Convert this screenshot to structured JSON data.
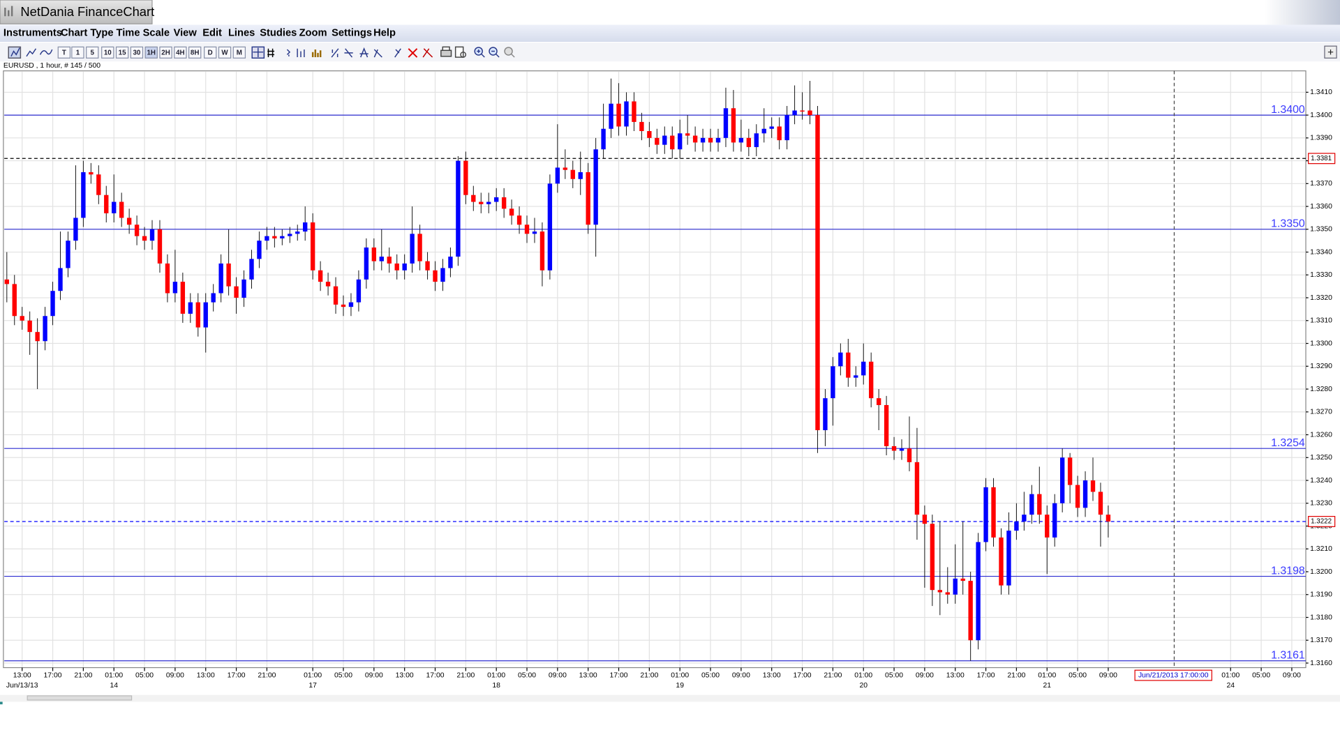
{
  "window_title": "NetDania FinanceChart",
  "menu": [
    "Instruments",
    "Chart Type",
    "Time Scale",
    "View",
    "Edit",
    "Lines",
    "Studies",
    "Zoom",
    "Settings",
    "Help"
  ],
  "toolbar": [
    "T",
    "1",
    "5",
    "10",
    "15",
    "30",
    "1H",
    "2H",
    "4H",
    "8H",
    "D",
    "W",
    "M"
  ],
  "chart_data": {
    "type": "candlestick",
    "title": "EURUSD , 1 hour, # 145 / 500",
    "cursor_label": "Jun/21/2013 17:00:00",
    "up_color": "#0000ff",
    "down_color": "#ff0000",
    "grid": true,
    "ylim": [
      1.3158,
      1.3419
    ],
    "yticks": [
      {
        "value": 1.316,
        "label": "1.3160"
      },
      {
        "value": 1.317,
        "label": "1.3170"
      },
      {
        "value": 1.318,
        "label": "1.3180"
      },
      {
        "value": 1.319,
        "label": "1.3190"
      },
      {
        "value": 1.32,
        "label": "1.3200"
      },
      {
        "value": 1.321,
        "label": "1.3210"
      },
      {
        "value": 1.322,
        "label": "1.3220"
      },
      {
        "value": 1.323,
        "label": "1.3230"
      },
      {
        "value": 1.324,
        "label": "1.3240"
      },
      {
        "value": 1.325,
        "label": "1.3250"
      },
      {
        "value": 1.326,
        "label": "1.3260"
      },
      {
        "value": 1.327,
        "label": "1.3270"
      },
      {
        "value": 1.328,
        "label": "1.3280"
      },
      {
        "value": 1.329,
        "label": "1.3290"
      },
      {
        "value": 1.33,
        "label": "1.3300"
      },
      {
        "value": 1.331,
        "label": "1.3310"
      },
      {
        "value": 1.332,
        "label": "1.3320"
      },
      {
        "value": 1.333,
        "label": "1.3330"
      },
      {
        "value": 1.334,
        "label": "1.3340"
      },
      {
        "value": 1.335,
        "label": "1.3350"
      },
      {
        "value": 1.336,
        "label": "1.3360"
      },
      {
        "value": 1.337,
        "label": "1.3370"
      },
      {
        "value": 1.338,
        "label": "1.3380"
      },
      {
        "value": 1.339,
        "label": "1.3390"
      },
      {
        "value": 1.34,
        "label": "1.3400"
      },
      {
        "value": 1.341,
        "label": "1.3410"
      }
    ],
    "levels": [
      {
        "value": 1.34,
        "label": "1.3400"
      },
      {
        "value": 1.335,
        "label": "1.3350"
      },
      1.3254,
      1.3198,
      1.3161
    ],
    "price_lines": [
      {
        "value": 1.3381,
        "color": "#000000"
      },
      {
        "value": 1.3222,
        "color": "#0000ff"
      }
    ],
    "categories": [
      null,
      null,
      "13:00",
      null,
      null,
      null,
      "17:00",
      null,
      null,
      null,
      "21:00",
      null,
      null,
      null,
      "01:00",
      null,
      null,
      null,
      "05:00",
      null,
      null,
      null,
      "09:00",
      null,
      null,
      null,
      "13:00",
      null,
      null,
      null,
      "17:00",
      null,
      null,
      null,
      "21:00",
      null,
      null,
      null,
      null,
      null,
      "01:00",
      null,
      null,
      null,
      "05:00",
      null,
      null,
      null,
      "09:00",
      null,
      null,
      null,
      "13:00",
      null,
      null,
      null,
      "17:00",
      null,
      null,
      null,
      "21:00",
      null,
      null,
      null,
      "01:00",
      null,
      null,
      null,
      "05:00",
      null,
      null,
      null,
      "09:00",
      null,
      null,
      null,
      "13:00",
      null,
      null,
      null,
      "17:00",
      null,
      null,
      null,
      "21:00",
      null,
      null,
      null,
      "01:00",
      null,
      null,
      null,
      "05:00",
      null,
      null,
      null,
      "09:00",
      null,
      null,
      null,
      "13:00",
      null,
      null,
      null,
      "17:00",
      null,
      null,
      null,
      "21:00",
      null,
      null,
      null,
      "01:00",
      null,
      null,
      null,
      "05:00",
      null,
      null,
      null,
      "09:00",
      null,
      null,
      null,
      "13:00",
      null,
      null,
      null,
      "17:00",
      null,
      null,
      null,
      "21:00",
      null,
      null,
      null,
      "01:00",
      null,
      null,
      null,
      "05:00",
      null,
      null,
      null,
      "09:00",
      null,
      null,
      null,
      null,
      null,
      null,
      null,
      null,
      null,
      null,
      null,
      null,
      null,
      null,
      null,
      "01:00",
      null,
      null,
      null,
      "05:00",
      null,
      null,
      null,
      "09:00",
      null
    ],
    "dates": [
      null,
      null,
      "Jun/13/13",
      null,
      null,
      null,
      null,
      null,
      null,
      null,
      null,
      null,
      null,
      null,
      "14",
      null,
      null,
      null,
      null,
      null,
      null,
      null,
      null,
      null,
      null,
      null,
      null,
      null,
      null,
      null,
      null,
      null,
      null,
      null,
      null,
      null,
      null,
      null,
      null,
      null,
      "17",
      null,
      null,
      null,
      null,
      null,
      null,
      null,
      null,
      null,
      null,
      null,
      null,
      null,
      null,
      null,
      null,
      null,
      null,
      null,
      null,
      null,
      null,
      null,
      "18",
      null,
      null,
      null,
      null,
      null,
      null,
      null,
      null,
      null,
      null,
      null,
      null,
      null,
      null,
      null,
      null,
      null,
      null,
      null,
      null,
      null,
      null,
      null,
      "19",
      null,
      null,
      null,
      null,
      null,
      null,
      null,
      null,
      null,
      null,
      null,
      null,
      null,
      null,
      null,
      null,
      null,
      null,
      null,
      null,
      null,
      null,
      null,
      "20",
      null,
      null,
      null,
      null,
      null,
      null,
      null,
      null,
      null,
      null,
      null,
      null,
      null,
      null,
      null,
      null,
      null,
      null,
      null,
      null,
      null,
      null,
      null,
      "21",
      null,
      null,
      null,
      null,
      null,
      null,
      null,
      null,
      null,
      null,
      null,
      null,
      null,
      null,
      null,
      null,
      null,
      null,
      null,
      null,
      null,
      null,
      null,
      "24",
      null,
      null,
      null,
      null,
      null,
      null,
      null,
      null,
      null
    ],
    "open": [
      1.3328,
      1.3326,
      1.3312,
      1.331,
      1.3305,
      1.3301,
      1.3312,
      1.3323,
      1.3333,
      1.3345,
      1.3355,
      1.3375,
      1.3374,
      1.3365,
      1.3357,
      1.3362,
      1.3355,
      1.3352,
      1.3347,
      1.3345,
      1.335,
      1.3335,
      1.3322,
      1.3327,
      1.3313,
      1.3318,
      1.3307,
      1.3318,
      1.3322,
      1.3335,
      1.3325,
      1.332,
      1.3328,
      1.3337,
      1.3345,
      1.3347,
      1.3346,
      1.3347,
      1.3348,
      1.3349,
      1.3353,
      1.3332,
      1.3327,
      1.3325,
      1.3317,
      1.3316,
      1.3318,
      1.3328,
      1.3342,
      1.3336,
      1.3338,
      1.3335,
      1.3332,
      1.3335,
      1.3348,
      1.3336,
      1.3332,
      1.3327,
      1.3333,
      1.3338,
      1.338,
      1.3365,
      1.3362,
      1.3361,
      1.3362,
      1.3364,
      1.3359,
      1.3356,
      1.3352,
      1.3348,
      1.3349,
      1.3332,
      1.337,
      1.3377,
      1.3376,
      1.3372,
      1.3375,
      1.3352,
      1.3385,
      1.3394,
      1.3405,
      1.3395,
      1.3406,
      1.3397,
      1.3393,
      1.339,
      1.3387,
      1.3391,
      1.3385,
      1.3392,
      1.3391,
      1.3388,
      1.339,
      1.3388,
      1.339,
      1.3403,
      1.3388,
      1.339,
      1.3386,
      1.3392,
      1.3394,
      1.3395,
      1.3389,
      1.34,
      1.3402,
      1.3402,
      1.34,
      1.3262,
      1.3276,
      1.329,
      1.3296,
      1.3285,
      1.3286,
      1.3292,
      1.3276,
      1.3273,
      1.3255,
      1.3253,
      1.3254,
      1.3248,
      1.3225,
      1.3221,
      1.3192,
      1.3191,
      1.319,
      1.3197,
      1.3196,
      1.317,
      1.3213,
      1.3237,
      1.3215,
      1.3194,
      1.3218,
      1.3222,
      1.3225,
      1.3234,
      1.3225,
      1.3215,
      1.323,
      1.325,
      1.3238,
      1.3228,
      1.324,
      1.3235,
      1.3225,
      null,
      null,
      null,
      null,
      null,
      null,
      null,
      null,
      null,
      null,
      null,
      null,
      null,
      null,
      null,
      null,
      null,
      null,
      null,
      null,
      null,
      null,
      null,
      null,
      null
    ],
    "high": [
      1.334,
      1.333,
      1.3316,
      1.3314,
      1.3311,
      1.3316,
      1.3327,
      1.3349,
      1.3349,
      1.3378,
      1.338,
      1.3379,
      1.3378,
      1.3369,
      1.3374,
      1.3366,
      1.3359,
      1.3356,
      1.3351,
      1.3354,
      1.3354,
      1.3339,
      1.3341,
      1.3331,
      1.3322,
      1.3322,
      1.3322,
      1.3326,
      1.3339,
      1.335,
      1.3329,
      1.3332,
      1.3341,
      1.3349,
      1.3351,
      1.3351,
      1.335,
      1.3351,
      1.3352,
      1.336,
      1.3357,
      1.3336,
      1.3331,
      1.3329,
      1.3321,
      1.3322,
      1.3332,
      1.3346,
      1.3346,
      1.335,
      1.3342,
      1.3339,
      1.3339,
      1.336,
      1.3352,
      1.334,
      1.3336,
      1.3337,
      1.3342,
      1.3382,
      1.3384,
      1.3369,
      1.3366,
      1.3366,
      1.3368,
      1.3368,
      1.3363,
      1.336,
      1.3356,
      1.3355,
      1.3353,
      1.3374,
      1.3396,
      1.3385,
      1.338,
      1.3384,
      1.3379,
      1.339,
      1.3405,
      1.3416,
      1.3414,
      1.341,
      1.341,
      1.3401,
      1.3397,
      1.3394,
      1.3395,
      1.3395,
      1.3398,
      1.34,
      1.3395,
      1.3394,
      1.3394,
      1.3394,
      1.3412,
      1.3411,
      1.3398,
      1.3394,
      1.3396,
      1.3403,
      1.3399,
      1.3399,
      1.3404,
      1.3413,
      1.341,
      1.3415,
      1.3404,
      1.328,
      1.3294,
      1.33,
      1.3302,
      1.329,
      1.33,
      1.3296,
      1.328,
      1.3277,
      1.3259,
      1.3258,
      1.3268,
      1.3263,
      1.3229,
      1.3225,
      1.3222,
      1.3202,
      1.3212,
      1.3222,
      1.32,
      1.3217,
      1.3241,
      1.3241,
      1.3219,
      1.3226,
      1.323,
      1.3235,
      1.3238,
      1.3246,
      1.3229,
      1.3234,
      1.3254,
      1.3252,
      1.3242,
      1.3244,
      1.325,
      1.3239,
      1.3229,
      null,
      null,
      null,
      null,
      null,
      null,
      null,
      null,
      null,
      null,
      null,
      null,
      null,
      null,
      null,
      null,
      null,
      null,
      null,
      null,
      null,
      null,
      null,
      null,
      null
    ],
    "low": [
      1.3318,
      1.3308,
      1.3306,
      1.3295,
      1.328,
      1.3297,
      1.3308,
      1.3319,
      1.3329,
      1.3341,
      1.3351,
      1.337,
      1.3361,
      1.3353,
      1.3353,
      1.3351,
      1.3348,
      1.3343,
      1.3341,
      1.3341,
      1.3331,
      1.3318,
      1.3318,
      1.3309,
      1.3309,
      1.3303,
      1.3296,
      1.3314,
      1.3318,
      1.3321,
      1.3313,
      1.3316,
      1.3324,
      1.3333,
      1.3341,
      1.3342,
      1.3343,
      1.3344,
      1.3345,
      1.3345,
      1.3328,
      1.3323,
      1.3321,
      1.3313,
      1.3312,
      1.3312,
      1.3314,
      1.3324,
      1.3332,
      1.3332,
      1.3331,
      1.3328,
      1.3328,
      1.3331,
      1.3332,
      1.3328,
      1.3323,
      1.3323,
      1.3329,
      1.3334,
      1.3361,
      1.3358,
      1.3357,
      1.3357,
      1.3358,
      1.3355,
      1.3352,
      1.3348,
      1.3344,
      1.3344,
      1.3325,
      1.3328,
      1.3366,
      1.3372,
      1.3368,
      1.3365,
      1.3348,
      1.3338,
      1.3381,
      1.339,
      1.3391,
      1.3391,
      1.3393,
      1.3389,
      1.3386,
      1.3383,
      1.3383,
      1.3381,
      1.3381,
      1.3387,
      1.3384,
      1.3384,
      1.3384,
      1.3384,
      1.3386,
      1.3384,
      1.3384,
      1.3382,
      1.3382,
      1.3388,
      1.339,
      1.3385,
      1.3385,
      1.3396,
      1.3398,
      1.3396,
      1.3252,
      1.3255,
      1.3264,
      1.3286,
      1.3281,
      1.3281,
      1.3282,
      1.3272,
      1.3262,
      1.3251,
      1.3249,
      1.3249,
      1.3244,
      1.3214,
      1.3193,
      1.3185,
      1.3181,
      1.3186,
      1.3186,
      1.319,
      1.3161,
      1.3166,
      1.3209,
      1.3211,
      1.319,
      1.319,
      1.3214,
      1.3218,
      1.3221,
      1.3221,
      1.3199,
      1.3211,
      1.3226,
      1.323,
      1.3224,
      1.3224,
      1.3231,
      1.3211,
      1.3215,
      null,
      null,
      null,
      null,
      null,
      null,
      null,
      null,
      null,
      null,
      null,
      null,
      null,
      null,
      null,
      null,
      null,
      null,
      null,
      null,
      null,
      null,
      null,
      null,
      null
    ],
    "close": [
      1.3326,
      1.3312,
      1.331,
      1.3305,
      1.3301,
      1.3312,
      1.3323,
      1.3333,
      1.3345,
      1.3355,
      1.3375,
      1.3374,
      1.3365,
      1.3357,
      1.3362,
      1.3355,
      1.3352,
      1.3347,
      1.3345,
      1.335,
      1.3335,
      1.3322,
      1.3327,
      1.3313,
      1.3318,
      1.3307,
      1.3318,
      1.3322,
      1.3335,
      1.3325,
      1.332,
      1.3328,
      1.3337,
      1.3345,
      1.3347,
      1.3346,
      1.3347,
      1.3348,
      1.3349,
      1.3353,
      1.3332,
      1.3327,
      1.3325,
      1.3317,
      1.3316,
      1.3318,
      1.3328,
      1.3342,
      1.3336,
      1.3338,
      1.3335,
      1.3332,
      1.3335,
      1.3348,
      1.3336,
      1.3332,
      1.3327,
      1.3333,
      1.3338,
      1.338,
      1.3365,
      1.3362,
      1.3361,
      1.3362,
      1.3364,
      1.3359,
      1.3356,
      1.3352,
      1.3348,
      1.3349,
      1.3332,
      1.337,
      1.3377,
      1.3376,
      1.3372,
      1.3375,
      1.3352,
      1.3385,
      1.3394,
      1.3405,
      1.3395,
      1.3406,
      1.3397,
      1.3393,
      1.339,
      1.3387,
      1.3391,
      1.3385,
      1.3392,
      1.3391,
      1.3388,
      1.339,
      1.3388,
      1.339,
      1.3403,
      1.3388,
      1.339,
      1.3386,
      1.3392,
      1.3394,
      1.3395,
      1.3389,
      1.34,
      1.3402,
      1.3402,
      1.34,
      1.3262,
      1.3276,
      1.329,
      1.3296,
      1.3285,
      1.3286,
      1.3292,
      1.3276,
      1.3273,
      1.3255,
      1.3253,
      1.3254,
      1.3248,
      1.3225,
      1.3221,
      1.3192,
      1.3191,
      1.319,
      1.3197,
      1.3196,
      1.317,
      1.3213,
      1.3237,
      1.3215,
      1.3194,
      1.3218,
      1.3222,
      1.3225,
      1.3234,
      1.3225,
      1.3215,
      1.323,
      1.325,
      1.3238,
      1.3228,
      1.324,
      1.3235,
      1.3225,
      1.3222,
      null,
      null,
      null,
      null,
      null,
      null,
      null,
      null,
      null,
      null,
      null,
      null,
      null,
      null,
      null,
      null,
      null,
      null,
      null,
      null,
      null,
      null,
      null,
      null,
      null
    ]
  }
}
